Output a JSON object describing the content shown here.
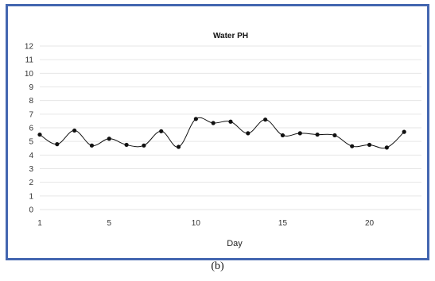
{
  "caption": "(b)",
  "chart_data": {
    "type": "line",
    "title": "Water PH",
    "xlabel": "Day",
    "ylabel": "",
    "x": [
      1,
      2,
      3,
      4,
      5,
      6,
      7,
      8,
      9,
      10,
      11,
      12,
      13,
      14,
      15,
      16,
      17,
      18,
      19,
      20,
      21,
      22
    ],
    "series": [
      {
        "values": [
          5.5,
          4.8,
          5.8,
          4.7,
          5.2,
          4.75,
          4.7,
          5.75,
          4.6,
          6.65,
          6.35,
          6.45,
          5.6,
          6.6,
          5.45,
          5.6,
          5.5,
          5.45,
          4.65,
          4.75,
          4.55,
          5.7
        ]
      }
    ],
    "xlim": [
      1,
      23
    ],
    "ylim": [
      0,
      12
    ],
    "xticks": [
      "1",
      "5",
      "10",
      "15",
      "20"
    ],
    "yticks": [
      "0",
      "1",
      "2",
      "3",
      "4",
      "5",
      "6",
      "7",
      "8",
      "9",
      "10",
      "11",
      "12"
    ],
    "grid": "horizontal",
    "line_color": "#111111",
    "grid_color": "#e6e6e6",
    "border_color": "#4366b0"
  }
}
